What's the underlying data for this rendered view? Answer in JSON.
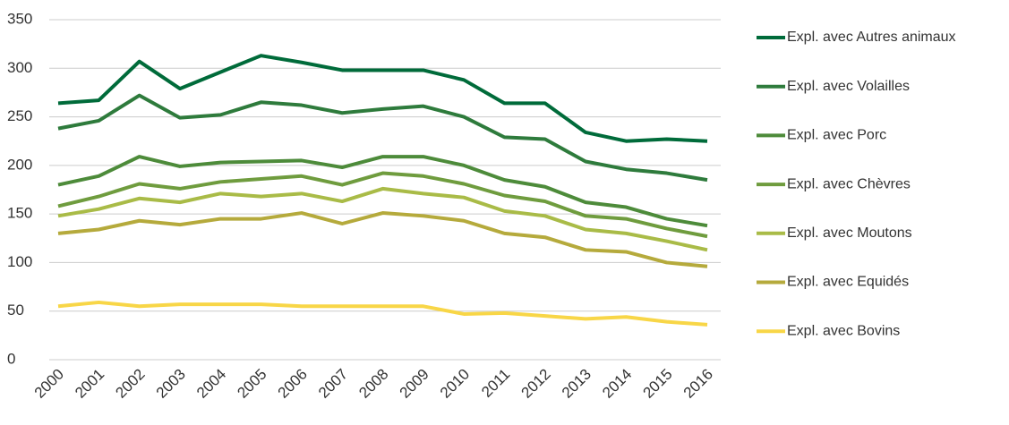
{
  "chart_data": {
    "type": "line",
    "x": [
      "2000",
      "2001",
      "2002",
      "2003",
      "2004",
      "2005",
      "2006",
      "2007",
      "2008",
      "2009",
      "2010",
      "2011",
      "2012",
      "2013",
      "2014",
      "2015",
      "2016"
    ],
    "ylim": [
      0,
      350
    ],
    "yticks": [
      0,
      50,
      100,
      150,
      200,
      250,
      300,
      350
    ],
    "grid": true,
    "legend": "right",
    "series": [
      {
        "name": "Expl. avec Autres animaux",
        "color": "#006b3a",
        "values": [
          264,
          267,
          307,
          279,
          296,
          313,
          306,
          298,
          298,
          298,
          288,
          264,
          264,
          234,
          225,
          227,
          225
        ]
      },
      {
        "name": "Expl. avec Volailles",
        "color": "#2e7b3c",
        "values": [
          238,
          246,
          272,
          249,
          252,
          265,
          262,
          254,
          258,
          261,
          250,
          229,
          227,
          204,
          196,
          192,
          185
        ]
      },
      {
        "name": "Expl. avec Porc",
        "color": "#4d8b3a",
        "values": [
          180,
          189,
          209,
          199,
          203,
          204,
          205,
          198,
          209,
          209,
          200,
          185,
          178,
          162,
          157,
          145,
          138
        ]
      },
      {
        "name": "Expl. avec Chèvres",
        "color": "#6f9c3e",
        "values": [
          158,
          168,
          181,
          176,
          183,
          186,
          189,
          180,
          192,
          189,
          181,
          169,
          163,
          148,
          145,
          135,
          127
        ]
      },
      {
        "name": "Expl. avec Moutons",
        "color": "#a9bb47",
        "values": [
          148,
          155,
          166,
          162,
          171,
          168,
          171,
          163,
          176,
          171,
          167,
          153,
          148,
          134,
          130,
          122,
          113
        ]
      },
      {
        "name": "Expl. avec Equidés",
        "color": "#b5aa3c",
        "values": [
          130,
          134,
          143,
          139,
          145,
          145,
          151,
          140,
          151,
          148,
          143,
          130,
          126,
          113,
          111,
          100,
          96
        ]
      },
      {
        "name": "Expl. avec Bovins",
        "color": "#f8d647",
        "values": [
          55,
          59,
          55,
          57,
          57,
          57,
          55,
          55,
          55,
          55,
          47,
          48,
          45,
          42,
          44,
          39,
          36
        ]
      }
    ]
  }
}
